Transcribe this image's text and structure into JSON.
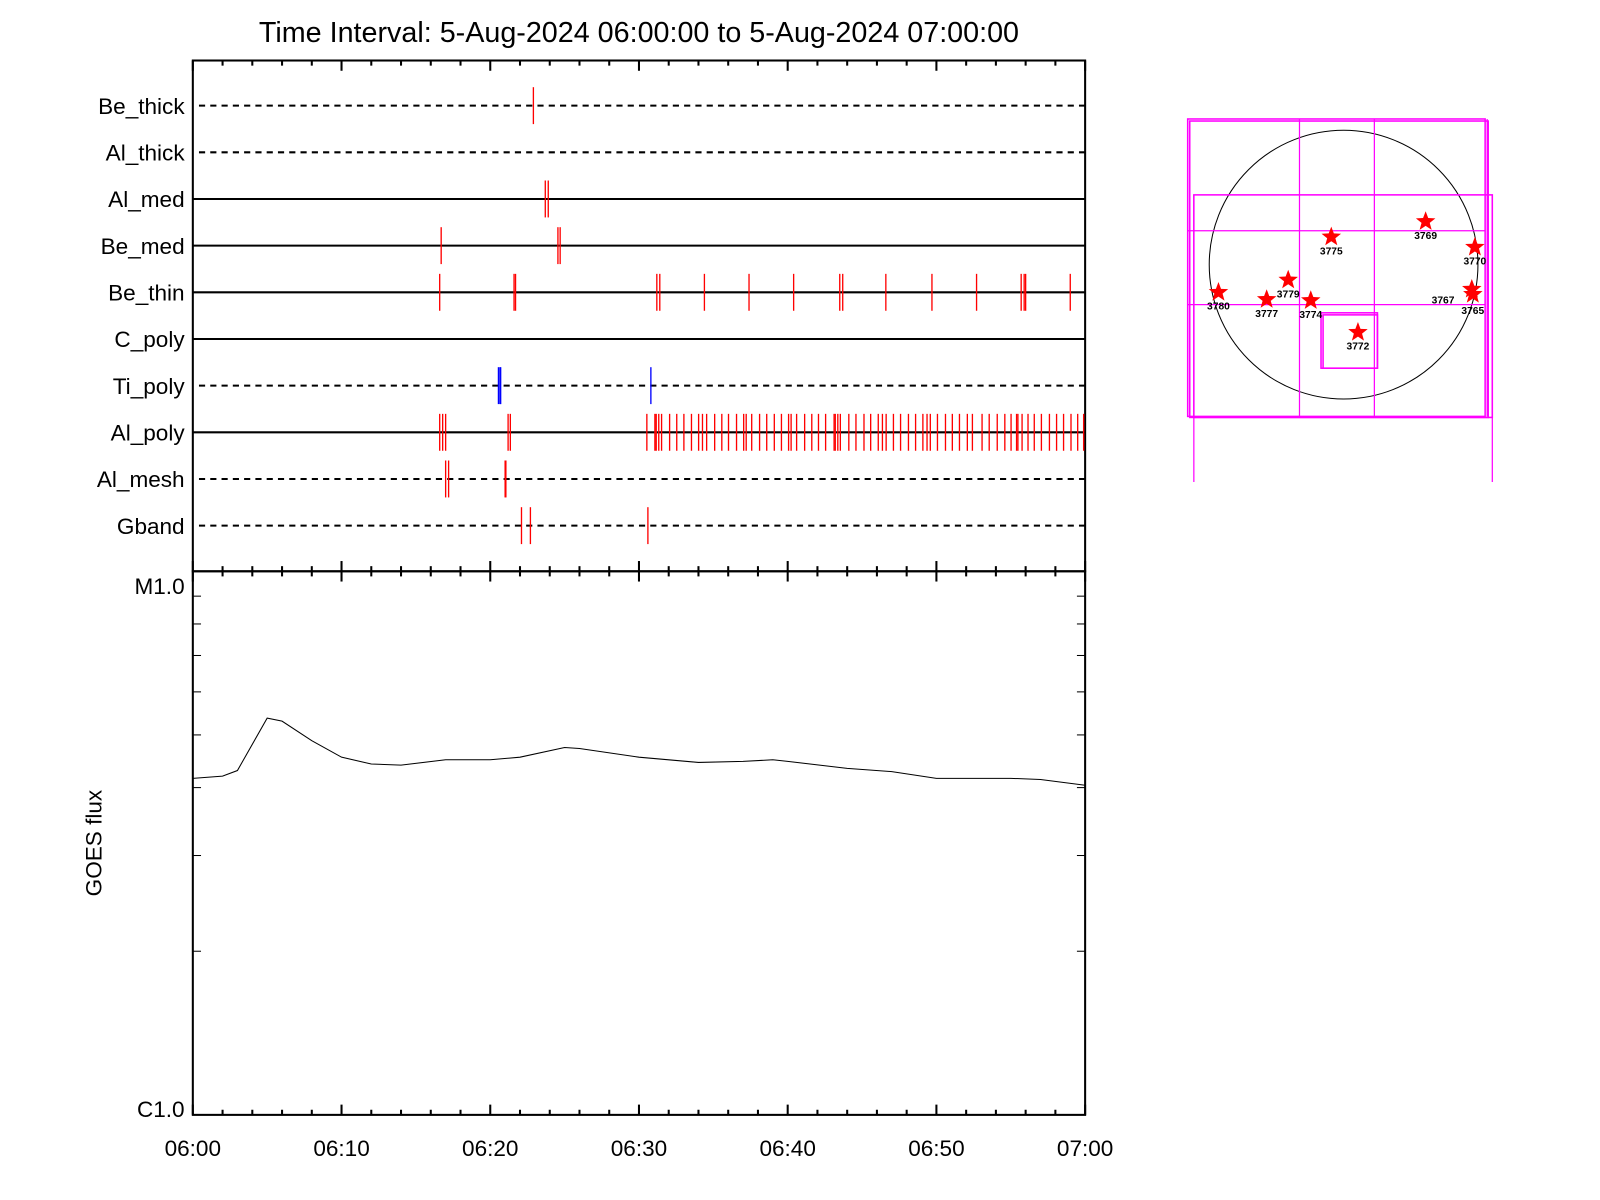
{
  "chart_data": [
    {
      "type": "event-timeline",
      "title": "Time Interval:  5-Aug-2024 06:00:00 to  5-Aug-2024 07:00:00",
      "x_unit": "minutes after 06:00",
      "xlim": [
        0,
        60
      ],
      "colors": {
        "default": "#ff0000",
        "Ti_poly": "#0000ff"
      },
      "channels": [
        {
          "name": "Be_thick",
          "line": "dashed",
          "events": [
            22.9
          ]
        },
        {
          "name": "Al_thick",
          "line": "dashed",
          "events": []
        },
        {
          "name": "Al_med",
          "line": "solid",
          "events": [
            23.7,
            23.9
          ]
        },
        {
          "name": "Be_med",
          "line": "solid",
          "events": [
            16.7,
            24.55,
            24.7
          ]
        },
        {
          "name": "Be_thin",
          "line": "solid",
          "events": [
            16.6,
            21.6,
            21.7,
            31.2,
            31.4,
            34.4,
            37.4,
            40.4,
            43.5,
            43.7,
            46.6,
            49.7,
            52.7,
            55.7,
            55.9,
            56.0,
            59.0
          ]
        },
        {
          "name": "C_poly",
          "line": "solid",
          "events": []
        },
        {
          "name": "Ti_poly",
          "line": "dashed",
          "events": [
            20.55,
            20.65,
            20.7,
            30.8
          ]
        },
        {
          "name": "Al_poly",
          "line": "solid",
          "events": [
            16.6,
            16.8,
            17.0,
            21.2,
            21.35,
            30.53,
            31.07,
            31.16,
            31.33,
            31.52,
            32.06,
            32.54,
            33.02,
            33.53,
            34.01,
            34.27,
            34.55,
            35.09,
            35.57,
            36.02,
            36.56,
            37.04,
            37.21,
            37.58,
            38.11,
            38.59,
            39.1,
            39.58,
            40.06,
            40.23,
            40.6,
            41.14,
            41.62,
            42.07,
            42.55,
            43.12,
            43.2,
            43.37,
            43.54,
            44.11,
            44.59,
            45.13,
            45.58,
            46.09,
            46.37,
            46.62,
            47.11,
            47.59,
            48.12,
            48.6,
            49.09,
            49.37,
            49.59,
            50.07,
            50.61,
            51.07,
            51.55,
            52.08,
            52.42,
            53.07,
            53.55,
            54.09,
            54.6,
            55.02,
            55.39,
            55.48,
            55.76,
            56.16,
            56.58,
            57.06,
            57.6,
            58.08,
            58.55,
            59.05,
            59.5,
            59.9
          ]
        },
        {
          "name": "Al_mesh",
          "line": "dashed",
          "events": [
            17.0,
            17.2,
            21.0,
            21.05
          ]
        },
        {
          "name": "Gband",
          "line": "dashed",
          "events": [
            22.1,
            22.7,
            30.6
          ]
        }
      ]
    },
    {
      "type": "line",
      "ylabel": "GOES flux",
      "yscale": "log",
      "ytick_labels": [
        "C1.0",
        "M1.0"
      ],
      "ylim_class": [
        "C1.0",
        "M1.0"
      ],
      "xtick_labels": [
        "06:00",
        "06:10",
        "06:20",
        "06:30",
        "06:40",
        "06:50",
        "07:00"
      ],
      "x_unit": "minutes after 06:00",
      "y_unit": "C-class multiple",
      "x": [
        0,
        2,
        3,
        5,
        6,
        8,
        10,
        12,
        14,
        17,
        20,
        22,
        25,
        26,
        30,
        34,
        37,
        39,
        40,
        44,
        47,
        50,
        55,
        57,
        60
      ],
      "y": [
        4.16,
        4.2,
        4.3,
        5.37,
        5.3,
        4.88,
        4.55,
        4.42,
        4.4,
        4.5,
        4.5,
        4.55,
        4.74,
        4.72,
        4.55,
        4.45,
        4.47,
        4.5,
        4.47,
        4.34,
        4.28,
        4.16,
        4.16,
        4.14,
        4.04
      ]
    }
  ],
  "sun_map": {
    "active_regions": [
      "3775",
      "3769",
      "3770",
      "3779",
      "3780",
      "3777",
      "3774",
      "3772",
      "3767",
      "3765"
    ],
    "colors": {
      "fov": "#ff00ff",
      "star": "#ff0000",
      "limb": "#000000"
    }
  }
}
